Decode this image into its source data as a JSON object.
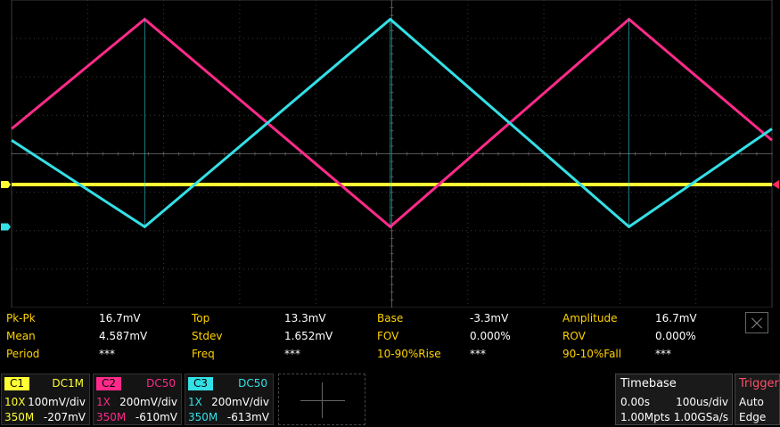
{
  "colors": {
    "c1": "#ffff33",
    "c2": "#ff2a8a",
    "c3": "#33e0e6",
    "label": "#ffd200",
    "grid": "#3a3a3a"
  },
  "chart_data": {
    "type": "line",
    "x_divisions": 10,
    "y_divisions": 8,
    "grid": true,
    "series": [
      {
        "channel": "C1",
        "shape": "flat",
        "level_div": -0.8
      },
      {
        "channel": "C2",
        "shape": "triangle",
        "points_div": [
          [
            0,
            0.65
          ],
          [
            1.75,
            3.5
          ],
          [
            4.98,
            -1.9
          ],
          [
            8.12,
            3.5
          ],
          [
            10,
            0.35
          ]
        ]
      },
      {
        "channel": "C3",
        "shape": "triangle",
        "points_div": [
          [
            0,
            0.35
          ],
          [
            1.75,
            -1.9
          ],
          [
            4.98,
            3.5
          ],
          [
            8.12,
            -1.9
          ],
          [
            10,
            0.65
          ]
        ]
      }
    ]
  },
  "measurements": [
    [
      {
        "label": "Pk-Pk",
        "value": "16.7mV"
      },
      {
        "label": "Top",
        "value": "13.3mV"
      },
      {
        "label": "Base",
        "value": "-3.3mV"
      },
      {
        "label": "Amplitude",
        "value": "16.7mV"
      }
    ],
    [
      {
        "label": "Mean",
        "value": "4.587mV"
      },
      {
        "label": "Stdev",
        "value": "1.652mV"
      },
      {
        "label": "FOV",
        "value": "0.000%"
      },
      {
        "label": "ROV",
        "value": "0.000%"
      }
    ],
    [
      {
        "label": "Period",
        "value": "***"
      },
      {
        "label": "Freq",
        "value": "***"
      },
      {
        "label": "10-90%Rise",
        "value": "***"
      },
      {
        "label": "90-10%Fall",
        "value": "***"
      }
    ]
  ],
  "channels": {
    "c1": {
      "name": "C1",
      "coupling": "DC1M",
      "probe": "10X",
      "scale": "100mV/div",
      "bandwidth": "350M",
      "offset": "-207mV"
    },
    "c2": {
      "name": "C2",
      "coupling": "DC50",
      "probe": "1X",
      "scale": "200mV/div",
      "bandwidth": "350M",
      "offset": "-610mV"
    },
    "c3": {
      "name": "C3",
      "coupling": "DC50",
      "probe": "1X",
      "scale": "200mV/div",
      "bandwidth": "350M",
      "offset": "-613mV"
    }
  },
  "timebase": {
    "title": "Timebase",
    "delay": "0.00s",
    "scale": "100us/div",
    "points": "1.00Mpts",
    "rate": "1.00GSa/s"
  },
  "trigger": {
    "title": "Trigger",
    "mode": "Auto",
    "type": "Edge"
  }
}
